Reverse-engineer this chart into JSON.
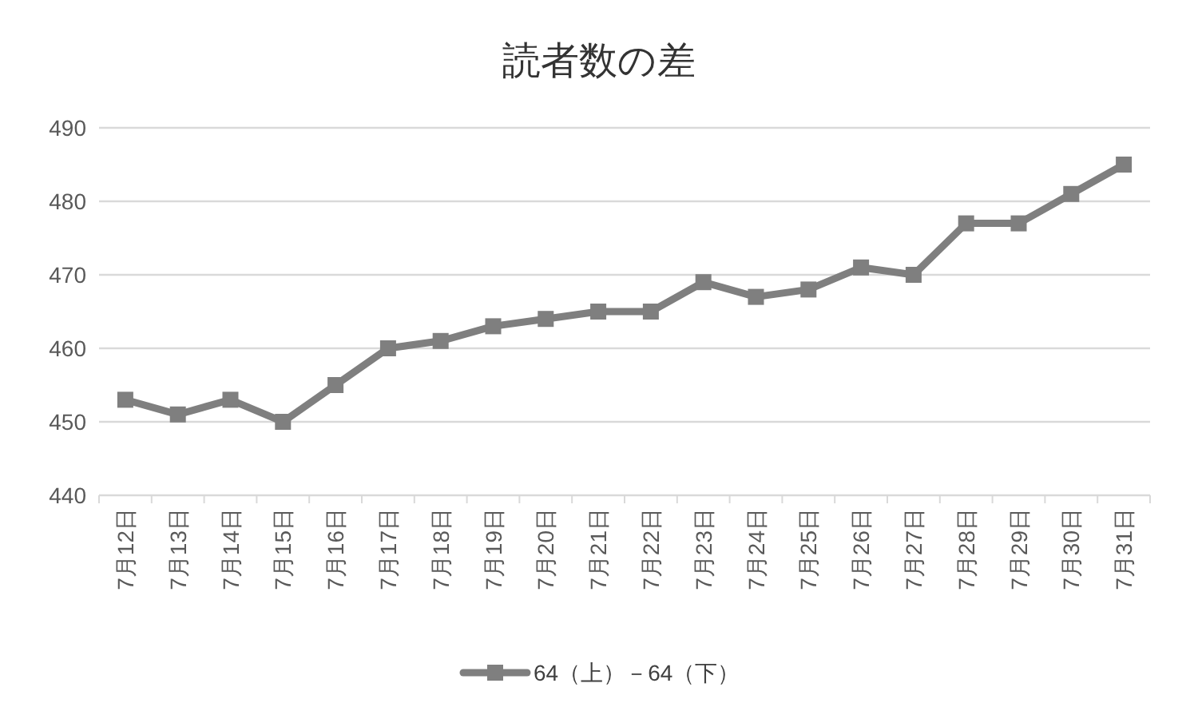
{
  "chart_data": {
    "type": "line",
    "title": "読者数の差",
    "categories": [
      "7月12日",
      "7月13日",
      "7月14日",
      "7月15日",
      "7月16日",
      "7月17日",
      "7月18日",
      "7月19日",
      "7月20日",
      "7月21日",
      "7月22日",
      "7月23日",
      "7月24日",
      "7月25日",
      "7月26日",
      "7月27日",
      "7月28日",
      "7月29日",
      "7月30日",
      "7月31日"
    ],
    "series": [
      {
        "name": "64（上）－64（下）",
        "color": "#7f7f7f",
        "values": [
          453,
          451,
          453,
          450,
          455,
          460,
          461,
          463,
          464,
          465,
          465,
          469,
          467,
          468,
          471,
          470,
          477,
          477,
          481,
          485
        ]
      }
    ],
    "ylim": [
      440,
      490
    ],
    "yticks": [
      440,
      450,
      460,
      470,
      480,
      490
    ],
    "grid": "y",
    "legend": "bottom",
    "marker": "square",
    "line_style": "solid"
  }
}
